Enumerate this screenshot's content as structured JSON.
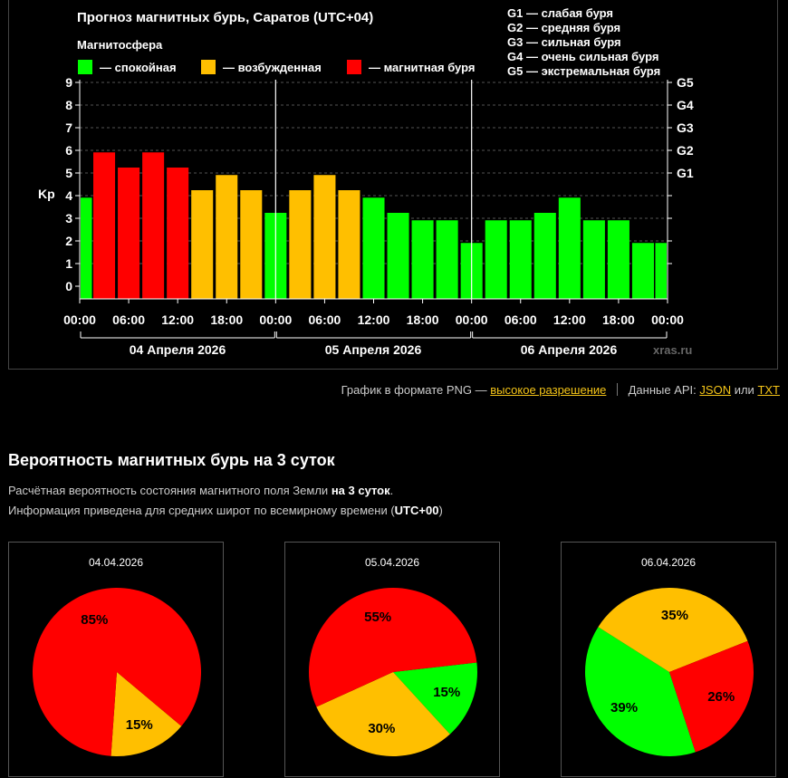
{
  "chart": {
    "title": "Прогноз магнитных бурь, Саратов (UTC+04)",
    "legend_title": "Магнитосфера",
    "legend": [
      {
        "label": "— спокойная",
        "color": "#00ff00"
      },
      {
        "label": "— возбужденная",
        "color": "#ffbf00"
      },
      {
        "label": "— магнитная буря",
        "color": "#ff0000"
      }
    ],
    "g_scale": [
      "G1 — слабая буря",
      "G2 — средняя буря",
      "G3 — сильная буря",
      "G4 — очень сильная буря",
      "G5 — экстремальная буря"
    ],
    "ylabel": "Kp",
    "watermark": "xras.ru",
    "day_labels": [
      "04 Апреля 2026",
      "05 Апреля 2026",
      "06 Апреля 2026"
    ]
  },
  "chart_data": {
    "type": "bar",
    "title": "Прогноз магнитных бурь, Саратов (UTC+04)",
    "ylabel": "Kp",
    "ylim": [
      0,
      9
    ],
    "yticks": [
      0,
      1,
      2,
      3,
      4,
      5,
      6,
      7,
      8,
      9
    ],
    "right_ticks": [
      {
        "value": 5,
        "label": "G1"
      },
      {
        "value": 6,
        "label": "G2"
      },
      {
        "value": 7,
        "label": "G3"
      },
      {
        "value": 8,
        "label": "G4"
      },
      {
        "value": 9,
        "label": "G5"
      }
    ],
    "x_tick_labels": [
      "00:00",
      "06:00",
      "12:00",
      "18:00",
      "00:00",
      "06:00",
      "12:00",
      "18:00",
      "00:00",
      "06:00",
      "12:00",
      "18:00",
      "00:00"
    ],
    "grid": true,
    "values": [
      3.67,
      5.67,
      5.0,
      5.67,
      5.0,
      4.0,
      4.67,
      4.0,
      3.0,
      4.0,
      4.67,
      4.0,
      3.67,
      3.0,
      2.67,
      2.67,
      1.67,
      2.67,
      2.67,
      3.0,
      3.67,
      2.67,
      2.67,
      1.67,
      1.67
    ],
    "colors": {
      "calm": "#00ff00",
      "disturbed": "#ffbf00",
      "storm": "#ff0000"
    },
    "pies": [
      {
        "date": "04.04.2026",
        "slices": [
          {
            "label": "15%",
            "value": 15,
            "color": "#ffbf00"
          },
          {
            "label": "85%",
            "value": 85,
            "color": "#ff0000"
          }
        ]
      },
      {
        "date": "05.04.2026",
        "slices": [
          {
            "label": "15%",
            "value": 15,
            "color": "#00ff00"
          },
          {
            "label": "30%",
            "value": 30,
            "color": "#ffbf00"
          },
          {
            "label": "55%",
            "value": 55,
            "color": "#ff0000"
          }
        ]
      },
      {
        "date": "06.04.2026",
        "slices": [
          {
            "label": "39%",
            "value": 39,
            "color": "#00ff00"
          },
          {
            "label": "35%",
            "value": 35,
            "color": "#ffbf00"
          },
          {
            "label": "26%",
            "value": 26,
            "color": "#ff0000"
          }
        ]
      }
    ]
  },
  "links": {
    "png_prefix": "График в формате PNG —",
    "hires": "высокое разрешение",
    "api_prefix": "Данные API:",
    "json": "JSON",
    "or": "или",
    "txt": "TXT"
  },
  "section": {
    "title": "Вероятность магнитных бурь на 3 суток",
    "desc1_a": "Расчётная вероятность состояния магнитного поля Земли",
    "desc1_b": "на 3 суток",
    "desc1_c": ".",
    "desc2_a": "Информация приведена для средних широт по всемирному времени (",
    "desc2_b": "UTC+00",
    "desc2_c": ")"
  }
}
